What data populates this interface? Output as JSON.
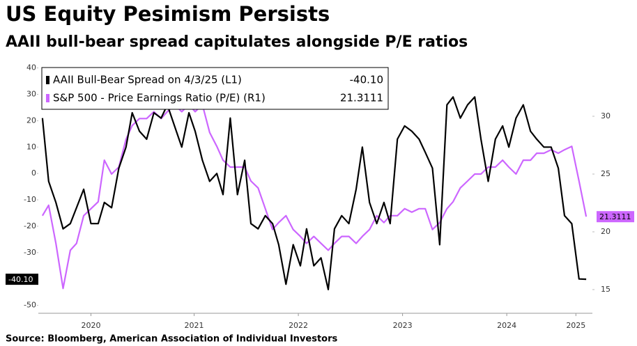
{
  "chart_data": {
    "type": "line",
    "title": "US Equity Pesimism Persists",
    "subtitle": "AAII bull-bear spread capitulates alongside P/E ratios",
    "source": "Source: Bloomberg, American Association of Individual Investors",
    "x": [
      2019.99,
      2020.05,
      2020.12,
      2020.19,
      2020.26,
      2020.32,
      2020.39,
      2020.46,
      2020.53,
      2020.59,
      2020.66,
      2020.73,
      2020.8,
      2020.86,
      2020.93,
      2021.0,
      2021.07,
      2021.14,
      2021.2,
      2021.27,
      2021.34,
      2021.41,
      2021.47,
      2021.54,
      2021.61,
      2021.68,
      2021.74,
      2021.81,
      2021.88,
      2021.95,
      2022.01,
      2022.08,
      2022.15,
      2022.22,
      2022.28,
      2022.35,
      2022.42,
      2022.49,
      2022.55,
      2022.62,
      2022.69,
      2022.76,
      2022.82,
      2022.89,
      2022.96,
      2023.03,
      2023.09,
      2023.16,
      2023.23,
      2023.3,
      2023.36,
      2023.43,
      2023.5,
      2023.57,
      2023.64,
      2023.7,
      2023.77,
      2023.84,
      2023.91,
      2023.97,
      2024.04,
      2024.11,
      2024.18,
      2024.24,
      2024.31,
      2024.38,
      2024.45,
      2024.51,
      2024.58,
      2024.65,
      2024.72,
      2024.78,
      2024.85,
      2024.92,
      2024.99,
      2025.05,
      2025.12,
      2025.19,
      2025.26
    ],
    "series": [
      {
        "name": "AAII Bull-Bear Spread on 4/3/25 (L1)",
        "color": "#000000",
        "axis": "y",
        "last_label": "-40.10",
        "values": [
          21,
          -3,
          -11,
          -21,
          -19,
          -13,
          -6,
          -19,
          -19,
          -11,
          -13,
          2,
          10,
          23,
          16,
          13,
          23,
          21,
          26,
          18,
          10,
          23,
          16,
          5,
          -3,
          0,
          -8,
          21,
          -8,
          5,
          -19,
          -21,
          -16,
          -19,
          -27,
          -42,
          -27,
          -35,
          -21,
          -35,
          -32,
          -44,
          -21,
          -16,
          -19,
          -6,
          10,
          -11,
          -19,
          -11,
          -19,
          13,
          18,
          16,
          13,
          8,
          2,
          -27,
          26,
          29,
          21,
          26,
          29,
          13,
          -3,
          13,
          18,
          10,
          21,
          26,
          16,
          13,
          10,
          10,
          2,
          -16,
          -19,
          -40,
          -40.1
        ]
      },
      {
        "name": "S&P 500 - Price Earnings Ratio (P/E) (R1)",
        "color": "#cc66ff",
        "axis": "y2",
        "last_label": "21.3111",
        "values": [
          21.4,
          22.3,
          19,
          15.1,
          18.4,
          19,
          21.4,
          22,
          22.6,
          26.2,
          25,
          25.6,
          28,
          29.2,
          29.8,
          29.8,
          30.4,
          29.8,
          30.4,
          31,
          30.4,
          31,
          30.4,
          31,
          28.6,
          27.4,
          26.2,
          25.6,
          25.6,
          25.6,
          24.4,
          23.8,
          22,
          20.2,
          20.8,
          21.4,
          20.2,
          19.6,
          19,
          19.6,
          19,
          18.4,
          19,
          19.6,
          19.6,
          19,
          19.6,
          20.2,
          21.4,
          20.8,
          21.4,
          21.4,
          22,
          21.7,
          22,
          22,
          20.2,
          20.8,
          22,
          22.6,
          23.8,
          24.4,
          25,
          25,
          25.6,
          25.6,
          26.2,
          25.6,
          25,
          26.2,
          26.2,
          26.8,
          26.8,
          27.1,
          26.8,
          27.1,
          27.4,
          24.4,
          21.3111
        ]
      }
    ],
    "xlim": [
      2019.95,
      2025.32
    ],
    "xticks": [
      {
        "value": 2020.46,
        "label": "2020"
      },
      {
        "value": 2021.46,
        "label": "2021"
      },
      {
        "value": 2022.47,
        "label": "2022"
      },
      {
        "value": 2023.48,
        "label": "2023"
      },
      {
        "value": 2024.49,
        "label": "2024"
      },
      {
        "value": 2025.16,
        "label": "2025"
      }
    ],
    "ylim": [
      -53,
      42
    ],
    "yticks": [
      -50,
      -40,
      -30,
      -20,
      -10,
      0,
      10,
      20,
      30,
      40
    ],
    "y2lim": [
      12.95,
      34.64
    ],
    "y2ticks": [
      15,
      20,
      25,
      30
    ],
    "legend": "upper left"
  }
}
